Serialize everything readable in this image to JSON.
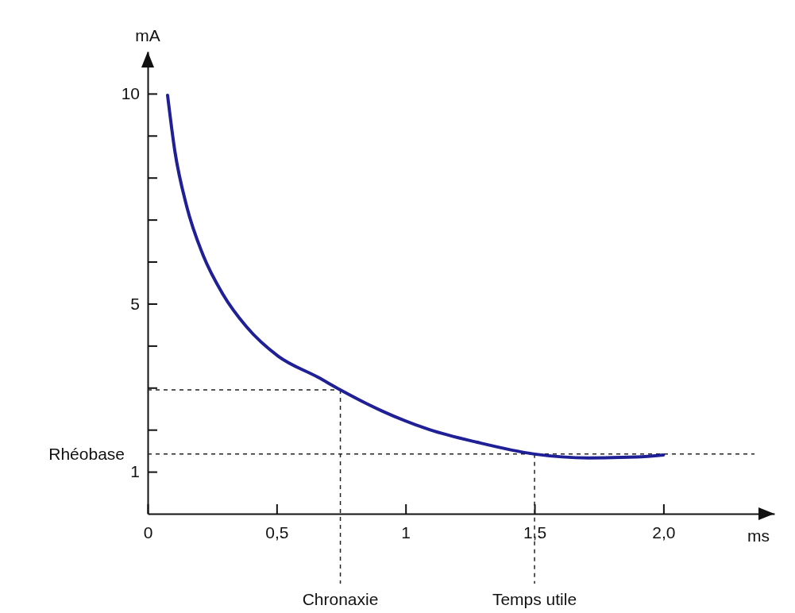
{
  "chart_data": {
    "type": "line",
    "xlabel": "ms",
    "ylabel": "mA",
    "x": [
      0.077,
      0.105,
      0.151,
      0.213,
      0.29,
      0.383,
      0.506,
      0.66,
      0.747,
      0.907,
      1.093,
      1.278,
      1.5,
      1.71,
      1.895,
      2.0
    ],
    "series": [
      {
        "color": "#1f1f96",
        "values": [
          9.96,
          8.64,
          7.32,
          6.18,
          5.24,
          4.45,
          3.75,
          3.25,
          2.95,
          2.45,
          2.0,
          1.7,
          1.42,
          1.33,
          1.35,
          1.4
        ]
      }
    ],
    "xlim": [
      0,
      2.43
    ],
    "ylim": [
      0,
      11
    ],
    "xticks": [
      0,
      {
        "value": 0.5,
        "label": "0,5"
      },
      1,
      {
        "value": 1.5,
        "label": "1,5"
      },
      {
        "value": 2,
        "label": "2,0"
      }
    ],
    "yticks": [
      1,
      {
        "value": 2,
        "label": null
      },
      {
        "value": 3,
        "label": null
      },
      {
        "value": 4,
        "label": null
      },
      5,
      {
        "value": 6,
        "label": null
      },
      {
        "value": 7,
        "label": null
      },
      {
        "value": 8,
        "label": null
      },
      {
        "value": 9,
        "label": null
      },
      10
    ],
    "ref_lines": [
      {
        "axis": "y",
        "value": 2.95,
        "label": null,
        "line_style": "dashed"
      },
      {
        "axis": "y",
        "value": 1.42,
        "label": "Rhéobase",
        "line_style": "dashed"
      },
      {
        "axis": "x",
        "value": 0.747,
        "label": "Chronaxie",
        "line_style": "dashed"
      },
      {
        "axis": "x",
        "value": 1.5,
        "label": "Temps utile",
        "line_style": "dashed"
      }
    ],
    "marker": "none",
    "line_style": "solid"
  }
}
